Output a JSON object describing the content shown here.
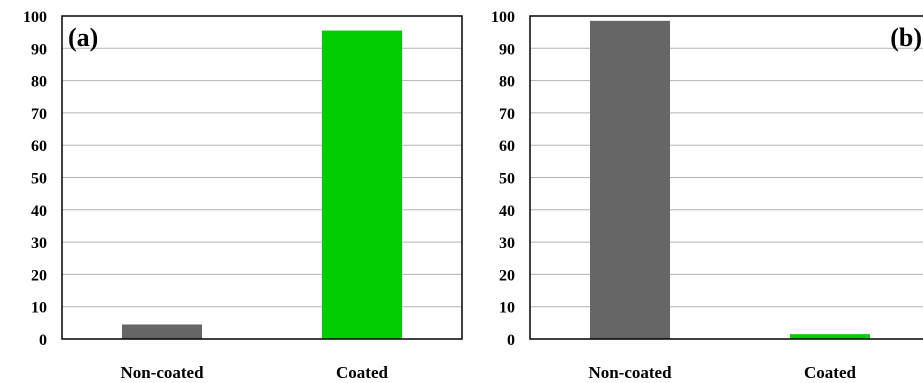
{
  "chart_data": [
    {
      "type": "bar",
      "panel_label": "(a)",
      "categories": [
        "Non-coated",
        "Coated"
      ],
      "values": [
        4.5,
        95.5
      ],
      "bar_colors": [
        "#666666",
        "#00cc00"
      ],
      "ylim": [
        0,
        100
      ],
      "yticks": [
        "0",
        "10",
        "20",
        "30",
        "40",
        "50",
        "60",
        "70",
        "80",
        "90",
        "100"
      ],
      "grid": true
    },
    {
      "type": "bar",
      "panel_label": "(b)",
      "categories": [
        "Non-coated",
        "Coated"
      ],
      "values": [
        98.5,
        1.5
      ],
      "bar_colors": [
        "#666666",
        "#00cc00"
      ],
      "ylim": [
        0,
        100
      ],
      "yticks": [
        "0",
        "10",
        "20",
        "30",
        "40",
        "50",
        "60",
        "70",
        "80",
        "90",
        "100"
      ],
      "grid": true
    }
  ]
}
